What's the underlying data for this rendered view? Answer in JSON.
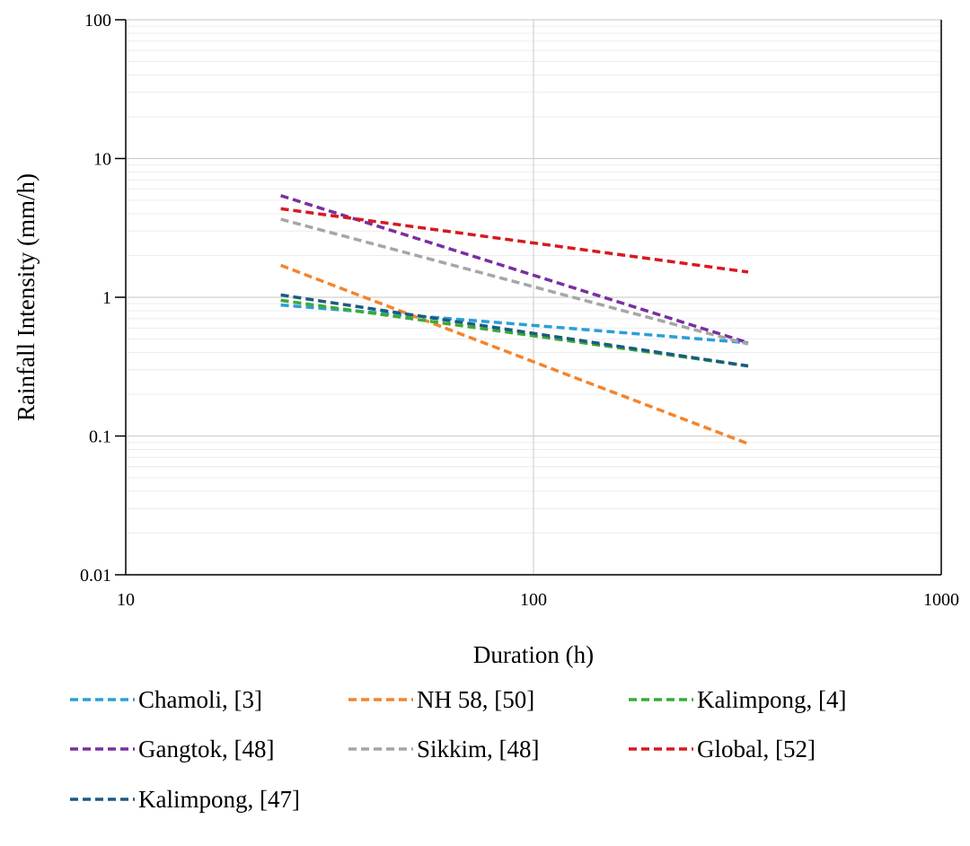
{
  "chart_data": {
    "type": "line",
    "title": "",
    "xlabel": "Duration (h)",
    "ylabel": "Rainfall Intensity (mm/h)",
    "x_scale": "log",
    "y_scale": "log",
    "xlim": [
      10,
      1000
    ],
    "ylim": [
      0.01,
      100
    ],
    "x_ticks": [
      "10",
      "100",
      "1000"
    ],
    "y_ticks": [
      "0.01",
      "0.1",
      "1",
      "10",
      "100"
    ],
    "grid": true,
    "line_style": "dashed",
    "legend_position": "bottom",
    "series": [
      {
        "name": "Chamoli, [3]",
        "color": "#2a9fd8",
        "points": [
          [
            24,
            0.88
          ],
          [
            336,
            0.47
          ]
        ]
      },
      {
        "name": "NH 58, [50]",
        "color": "#f4842c",
        "points": [
          [
            24,
            1.7
          ],
          [
            336,
            0.088
          ]
        ]
      },
      {
        "name": "Kalimpong, [4]",
        "color": "#3aaa35",
        "points": [
          [
            24,
            0.95
          ],
          [
            336,
            0.32
          ]
        ]
      },
      {
        "name": "Gangtok, [48]",
        "color": "#7b2f9e",
        "points": [
          [
            24,
            5.4
          ],
          [
            336,
            0.47
          ]
        ]
      },
      {
        "name": "Sikkim, [48]",
        "color": "#a6a6a6",
        "points": [
          [
            24,
            3.65
          ],
          [
            336,
            0.46
          ]
        ]
      },
      {
        "name": "Global, [52]",
        "color": "#d71920",
        "points": [
          [
            24,
            4.35
          ],
          [
            336,
            1.52
          ]
        ]
      },
      {
        "name": "Kalimpong, [47]",
        "color": "#1b5b82",
        "points": [
          [
            24,
            1.04
          ],
          [
            336,
            0.32
          ]
        ]
      }
    ]
  }
}
